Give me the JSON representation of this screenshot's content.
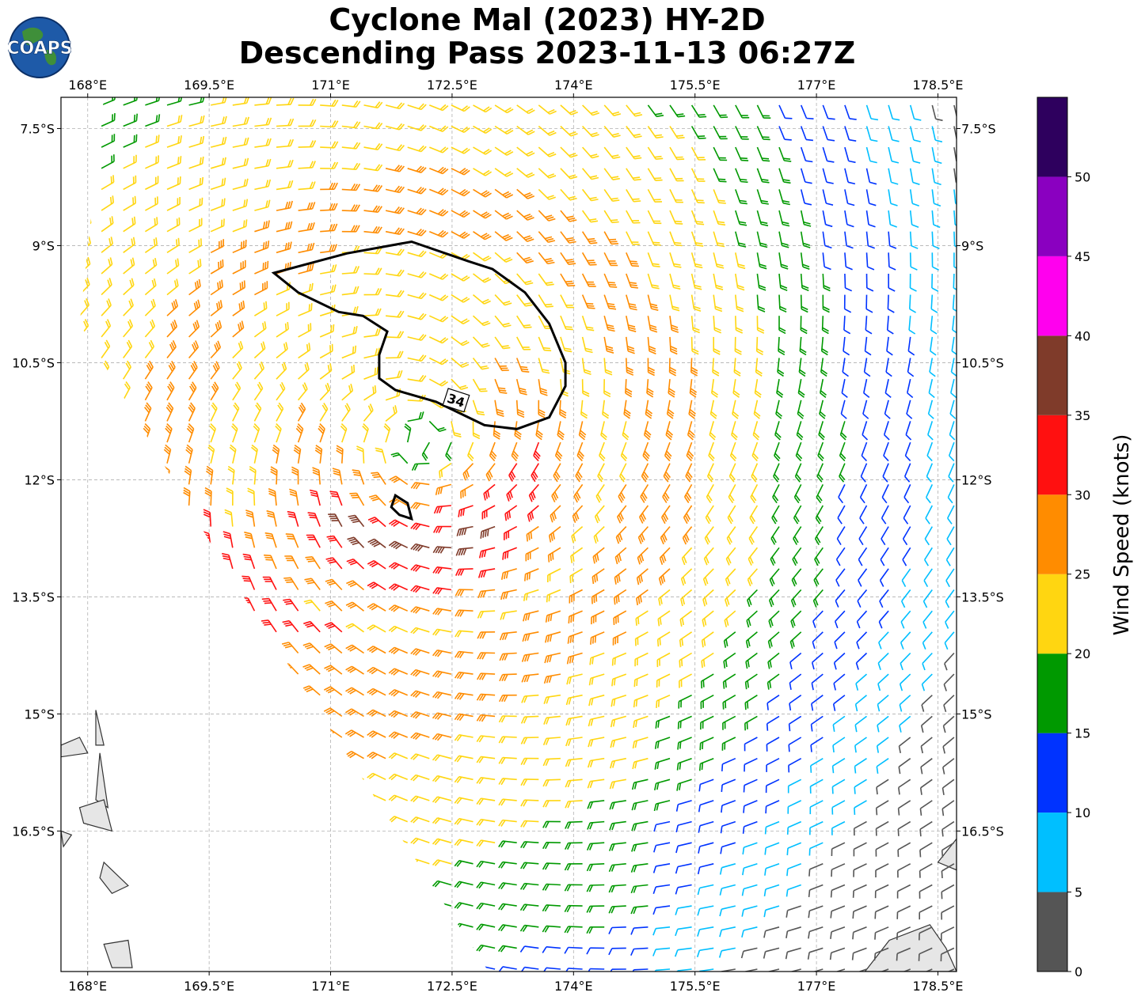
{
  "title_line1": "Cyclone Mal (2023) HY-2D",
  "title_line2": "Descending Pass 2023-11-13 06:27Z",
  "logo_text": "COAPS",
  "map": {
    "lon_range": [
      167.67,
      178.73
    ],
    "lat_range": [
      -18.3,
      -7.1
    ],
    "lon_ticks": [
      168,
      169.5,
      171,
      172.5,
      174,
      175.5,
      177,
      178.5
    ],
    "lat_ticks": [
      -7.5,
      -9,
      -10.5,
      -12,
      -13.5,
      -15,
      -16.5
    ],
    "lon_tick_labels": [
      "168°E",
      "169.5°E",
      "171°E",
      "172.5°E",
      "174°E",
      "175.5°E",
      "177°E",
      "178.5°E"
    ],
    "lat_tick_labels": [
      "7.5°S",
      "9°S",
      "10.5°S",
      "12°S",
      "13.5°S",
      "15°S",
      "16.5°S"
    ],
    "gridlines": true,
    "storm_center": {
      "lon": 172.1,
      "lat": -11.5
    },
    "swath_polygon": [
      [
        168.2,
        -7.1
      ],
      [
        178.73,
        -7.1
      ],
      [
        178.73,
        -18.3
      ],
      [
        172.95,
        -18.3
      ],
      [
        169.8,
        -13.3
      ],
      [
        167.9,
        -10.0
      ],
      [
        168.2,
        -7.1
      ]
    ],
    "contour_label": "34",
    "wind_34kt_contour": [
      [
        170.3,
        -9.35
      ],
      [
        171.2,
        -9.1
      ],
      [
        172.0,
        -8.95
      ],
      [
        172.7,
        -9.2
      ],
      [
        173.0,
        -9.3
      ],
      [
        173.2,
        -9.45
      ],
      [
        173.4,
        -9.6
      ],
      [
        173.7,
        -10.0
      ],
      [
        173.9,
        -10.5
      ],
      [
        173.9,
        -10.8
      ],
      [
        173.7,
        -11.2
      ],
      [
        173.3,
        -11.35
      ],
      [
        172.9,
        -11.3
      ],
      [
        172.7,
        -11.2
      ],
      [
        172.3,
        -11.0
      ],
      [
        171.8,
        -10.85
      ],
      [
        171.6,
        -10.7
      ],
      [
        171.6,
        -10.4
      ],
      [
        171.7,
        -10.1
      ],
      [
        171.4,
        -9.9
      ],
      [
        171.1,
        -9.85
      ],
      [
        170.6,
        -9.6
      ],
      [
        170.3,
        -9.35
      ]
    ],
    "wind_34kt_small_contour": [
      [
        171.8,
        -12.2
      ],
      [
        171.95,
        -12.3
      ],
      [
        172.0,
        -12.5
      ],
      [
        171.85,
        -12.45
      ],
      [
        171.75,
        -12.35
      ],
      [
        171.8,
        -12.2
      ]
    ],
    "islands": [
      [
        [
          167.67,
          -15.4
        ],
        [
          167.9,
          -15.3
        ],
        [
          168.0,
          -15.5
        ],
        [
          167.67,
          -15.55
        ]
      ],
      [
        [
          168.1,
          -14.95
        ],
        [
          168.2,
          -15.4
        ],
        [
          168.1,
          -15.4
        ]
      ],
      [
        [
          168.15,
          -15.5
        ],
        [
          168.25,
          -16.2
        ],
        [
          168.1,
          -16.1
        ]
      ],
      [
        [
          167.9,
          -16.2
        ],
        [
          168.2,
          -16.1
        ],
        [
          168.3,
          -16.5
        ],
        [
          167.95,
          -16.4
        ]
      ],
      [
        [
          167.67,
          -16.5
        ],
        [
          167.8,
          -16.55
        ],
        [
          167.7,
          -16.7
        ]
      ],
      [
        [
          168.2,
          -16.9
        ],
        [
          168.5,
          -17.2
        ],
        [
          168.3,
          -17.3
        ],
        [
          168.15,
          -17.1
        ]
      ],
      [
        [
          168.2,
          -17.95
        ],
        [
          168.5,
          -17.9
        ],
        [
          168.55,
          -18.25
        ],
        [
          168.3,
          -18.25
        ]
      ],
      [
        [
          177.6,
          -18.3
        ],
        [
          177.9,
          -17.9
        ],
        [
          178.4,
          -17.7
        ],
        [
          178.6,
          -18.0
        ],
        [
          178.73,
          -18.3
        ]
      ],
      [
        [
          178.5,
          -16.9
        ],
        [
          178.73,
          -16.6
        ],
        [
          178.73,
          -17.0
        ]
      ]
    ]
  },
  "colorbar": {
    "label": "Wind Speed (knots)",
    "bins": [
      0,
      5,
      10,
      15,
      20,
      25,
      30,
      35,
      40,
      45,
      50,
      55
    ],
    "colors": [
      "#555555",
      "#00bfff",
      "#0033ff",
      "#009900",
      "#ffd611",
      "#ff8c00",
      "#ff1010",
      "#7f3b2a",
      "#ff00ee",
      "#8a00c0",
      "#2e005e"
    ],
    "tick_values": [
      0,
      5,
      10,
      15,
      20,
      25,
      30,
      35,
      40,
      45,
      50
    ],
    "tick_labels": [
      "0",
      "5",
      "10",
      "15",
      "20",
      "25",
      "30",
      "35",
      "40",
      "45",
      "50"
    ]
  }
}
